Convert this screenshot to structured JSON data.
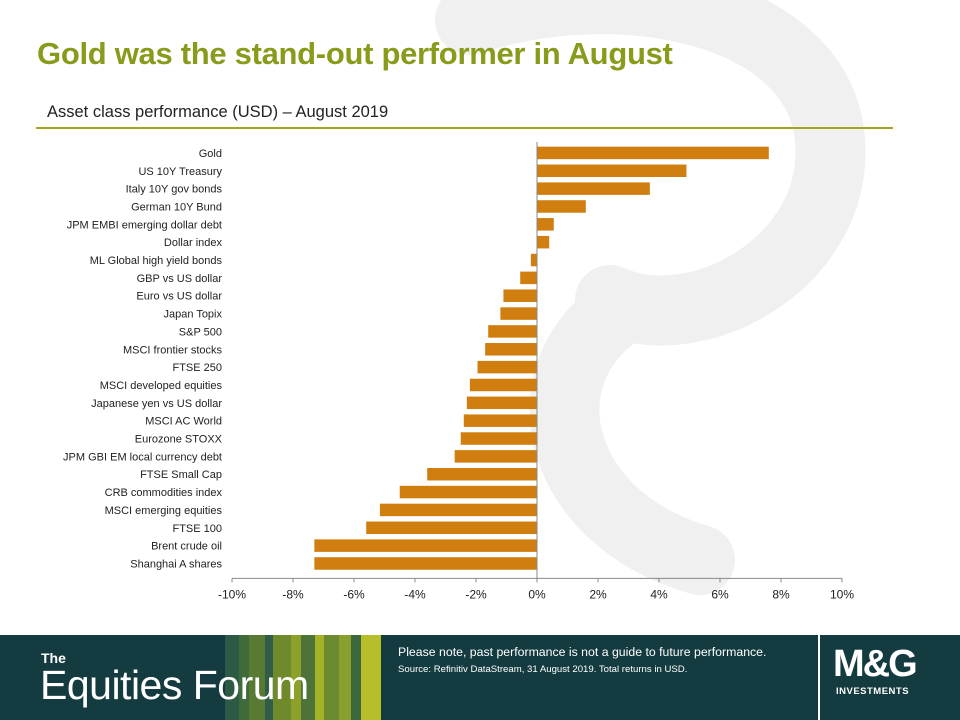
{
  "title": "Gold was the stand-out performer in August",
  "subtitle": "Asset class performance (USD) – August 2019",
  "colors": {
    "title": "#8a9a1b",
    "bar": "#d07e0f",
    "footer": "#143c40",
    "rule": "#a3a51f"
  },
  "chart_data": {
    "type": "bar",
    "orientation": "horizontal",
    "categories": [
      "Gold",
      "US 10Y Treasury",
      "Italy 10Y gov bonds",
      "German 10Y Bund",
      "JPM EMBI emerging dollar debt",
      "Dollar index",
      "ML Global high yield bonds",
      "GBP vs US dollar",
      "Euro vs US dollar",
      "Japan Topix",
      "S&P 500",
      "MSCI frontier stocks",
      "FTSE 250",
      "MSCI developed equities",
      "Japanese yen vs US dollar",
      "MSCI AC World",
      "Eurozone STOXX",
      "JPM GBI EM local currency debt",
      "FTSE Small Cap",
      "CRB commodities index",
      "MSCI emerging equities",
      "FTSE 100",
      "Brent crude oil",
      "Shanghai A shares"
    ],
    "values": [
      7.6,
      4.9,
      3.7,
      1.6,
      0.55,
      0.4,
      -0.2,
      -0.55,
      -1.1,
      -1.2,
      -1.6,
      -1.7,
      -1.95,
      -2.2,
      -2.3,
      -2.4,
      -2.5,
      -2.7,
      -3.6,
      -4.5,
      -5.15,
      -5.6,
      -7.3,
      -7.3
    ],
    "xlim": [
      -10,
      10
    ],
    "xticks": [
      -10,
      -8,
      -6,
      -4,
      -2,
      0,
      2,
      4,
      6,
      8,
      10
    ],
    "xtick_labels": [
      "-10%",
      "-8%",
      "-6%",
      "-4%",
      "-2%",
      "0%",
      "2%",
      "4%",
      "6%",
      "8%",
      "10%"
    ],
    "grid": false
  },
  "footer": {
    "brand_the": "The",
    "brand_name": "Equities Forum",
    "disclaimer": "Please note, past performance is not a guide to future performance.",
    "source": "Source: Refinitiv DataStream, 31 August 2019. Total returns in USD.",
    "logo_main": "M&G",
    "logo_sub": "INVESTMENTS"
  }
}
